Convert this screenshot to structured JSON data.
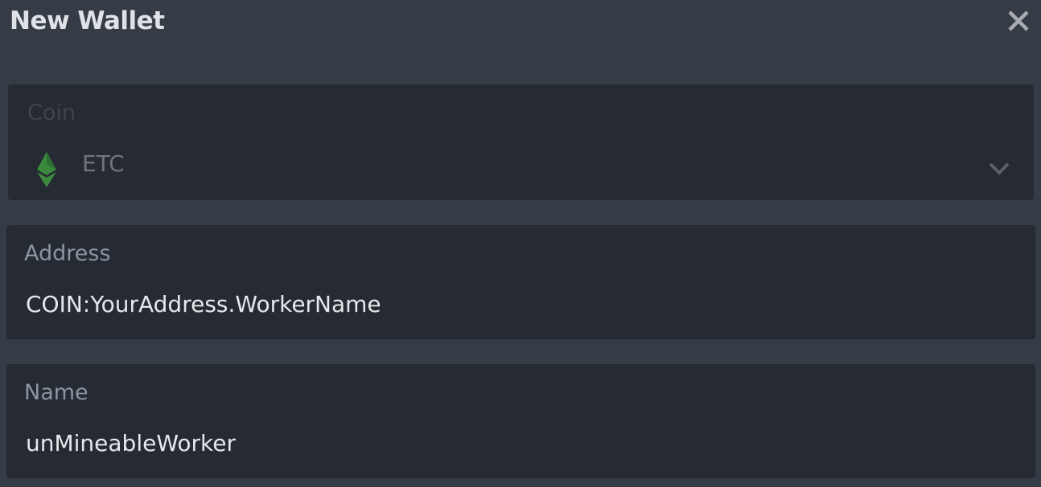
{
  "dialog": {
    "title": "New Wallet",
    "close_icon": "close-icon"
  },
  "coin": {
    "label": "Coin",
    "selected": "ETC",
    "icon": "ethereum-classic-icon",
    "icon_color": "#3b8a3e",
    "chevron_icon": "chevron-down-icon"
  },
  "address": {
    "label": "Address",
    "value": "COIN:YourAddress.WorkerName"
  },
  "name": {
    "label": "Name",
    "value": "unMineableWorker"
  }
}
